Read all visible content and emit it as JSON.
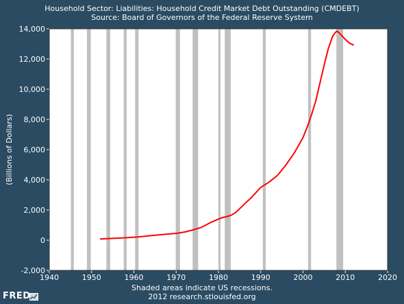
{
  "header": {
    "title": "Household Sector: Liabilities: Household Credit Market Debt Outstanding (CMDEBT)",
    "source": "Source: Board of Governors of the Federal Reserve System"
  },
  "footer": {
    "note": "Shaded areas indicate US recessions.",
    "credit": "2012 research.stlouisfed.org",
    "logo": "FRED"
  },
  "colors": {
    "background": "#2a4b61",
    "plot_background": "#ffffff",
    "recession_band": "#c0c0c0",
    "series_line": "#ff0000"
  },
  "chart_data": {
    "type": "line",
    "title": "Household Sector: Liabilities: Household Credit Market Debt Outstanding (CMDEBT)",
    "ylabel": "(Billions of Dollars)",
    "xlabel": "",
    "xlim": [
      1940,
      2020
    ],
    "ylim": [
      -2000,
      14000
    ],
    "xticks": [
      "1940",
      "1950",
      "1960",
      "1970",
      "1980",
      "1990",
      "2000",
      "2010",
      "2020"
    ],
    "yticks": [
      "-2,000",
      "0",
      "2,000",
      "4,000",
      "6,000",
      "8,000",
      "10,000",
      "12,000",
      "14,000"
    ],
    "grid": false,
    "recessions": [
      [
        1945.1,
        1945.8
      ],
      [
        1948.9,
        1949.8
      ],
      [
        1953.5,
        1954.4
      ],
      [
        1957.6,
        1958.3
      ],
      [
        1960.3,
        1961.1
      ],
      [
        1969.9,
        1970.9
      ],
      [
        1973.9,
        1975.2
      ],
      [
        1980.0,
        1980.5
      ],
      [
        1981.5,
        1982.9
      ],
      [
        1990.5,
        1991.2
      ],
      [
        2001.2,
        2001.9
      ],
      [
        2007.9,
        2009.5
      ]
    ],
    "series": [
      {
        "x": [
          1952,
          1955,
          1958,
          1961,
          1964,
          1967,
          1970,
          1972,
          1974,
          1976,
          1978,
          1980,
          1981,
          1982,
          1983,
          1984,
          1985,
          1986,
          1988,
          1990,
          1992,
          1994,
          1996,
          1998,
          2000,
          2001,
          2002,
          2003,
          2004,
          2005,
          2006,
          2007,
          2007.5,
          2008,
          2008.5,
          2009,
          2010,
          2011,
          2012
        ],
        "y": [
          80,
          120,
          160,
          220,
          300,
          380,
          450,
          540,
          680,
          850,
          1150,
          1400,
          1500,
          1570,
          1650,
          1820,
          2080,
          2350,
          2880,
          3500,
          3850,
          4300,
          5000,
          5800,
          6800,
          7500,
          8300,
          9200,
          10400,
          11600,
          12700,
          13500,
          13700,
          13850,
          13750,
          13600,
          13300,
          13050,
          12920
        ]
      }
    ]
  }
}
